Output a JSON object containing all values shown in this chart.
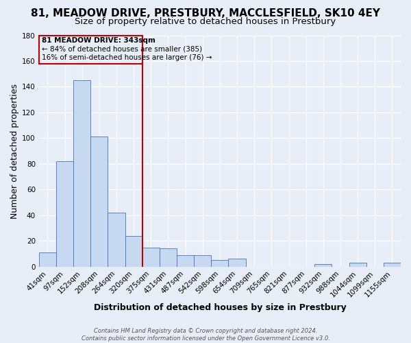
{
  "title": "81, MEADOW DRIVE, PRESTBURY, MACCLESFIELD, SK10 4EY",
  "subtitle": "Size of property relative to detached houses in Prestbury",
  "xlabel": "Distribution of detached houses by size in Prestbury",
  "ylabel": "Number of detached properties",
  "bar_labels": [
    "41sqm",
    "97sqm",
    "152sqm",
    "208sqm",
    "264sqm",
    "320sqm",
    "375sqm",
    "431sqm",
    "487sqm",
    "542sqm",
    "598sqm",
    "654sqm",
    "709sqm",
    "765sqm",
    "821sqm",
    "877sqm",
    "932sqm",
    "988sqm",
    "1044sqm",
    "1099sqm",
    "1155sqm"
  ],
  "bar_values": [
    11,
    82,
    145,
    101,
    42,
    24,
    15,
    14,
    9,
    9,
    5,
    6,
    0,
    0,
    0,
    0,
    2,
    0,
    3,
    0,
    3
  ],
  "bar_color": "#c6d9f1",
  "bar_edge_color": "#4472c4",
  "ylim": [
    0,
    180
  ],
  "yticks": [
    0,
    20,
    40,
    60,
    80,
    100,
    120,
    140,
    160,
    180
  ],
  "vline_x_index": 5.5,
  "vline_color": "#c00000",
  "annotation_title": "81 MEADOW DRIVE: 343sqm",
  "annotation_line1": "← 84% of detached houses are smaller (385)",
  "annotation_line2": "16% of semi-detached houses are larger (76) →",
  "footer_line1": "Contains HM Land Registry data © Crown copyright and database right 2024.",
  "footer_line2": "Contains public sector information licensed under the Open Government Licence v3.0.",
  "fig_bg_color": "#e8eef8",
  "plot_bg_color": "#e8eef8",
  "grid_color": "#ffffff",
  "title_fontsize": 11,
  "subtitle_fontsize": 9.5,
  "axis_label_fontsize": 9,
  "tick_fontsize": 7.5,
  "footer_fontsize": 6
}
